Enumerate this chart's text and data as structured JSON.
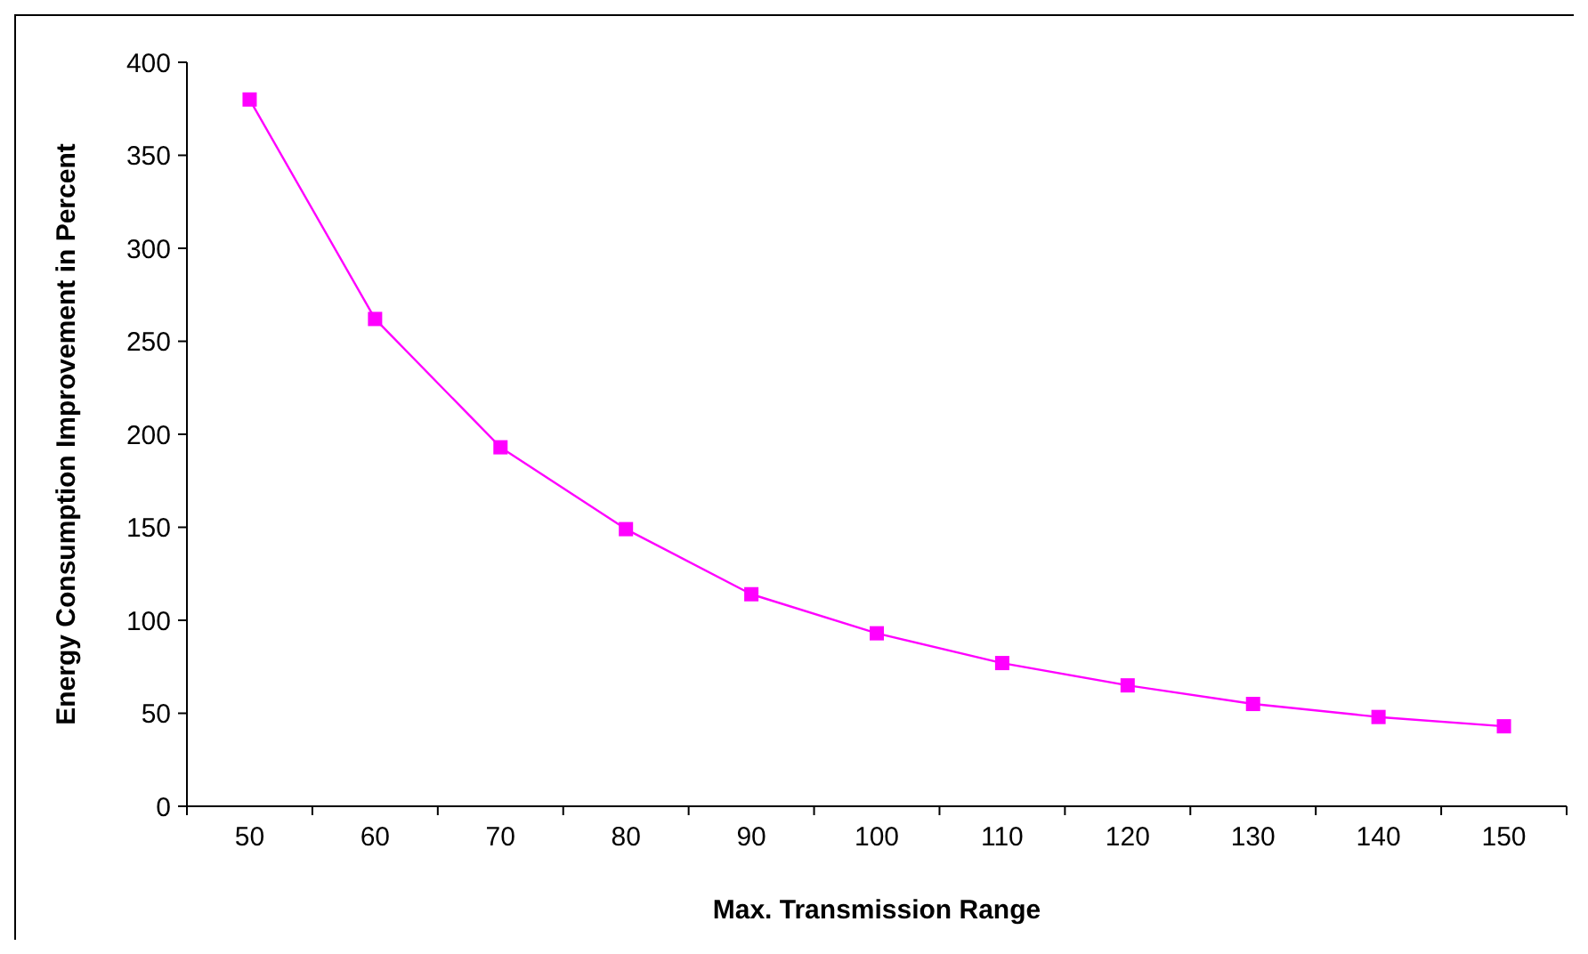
{
  "chart_data": {
    "type": "line",
    "xlabel": "Max. Transmission Range",
    "ylabel": "Energy Consumption Improvement in Percent",
    "categories": [
      "50",
      "60",
      "70",
      "80",
      "90",
      "100",
      "110",
      "120",
      "130",
      "140",
      "150"
    ],
    "series": [
      {
        "color": "#ff00ff",
        "values": [
          380,
          262,
          193,
          149,
          114,
          93,
          77,
          65,
          55,
          48,
          43
        ]
      }
    ],
    "ylim": [
      0,
      400
    ],
    "yticks": [
      0,
      50,
      100,
      150,
      200,
      250,
      300,
      350,
      400
    ],
    "grid": false,
    "marker": "square",
    "line_style": "solid"
  }
}
